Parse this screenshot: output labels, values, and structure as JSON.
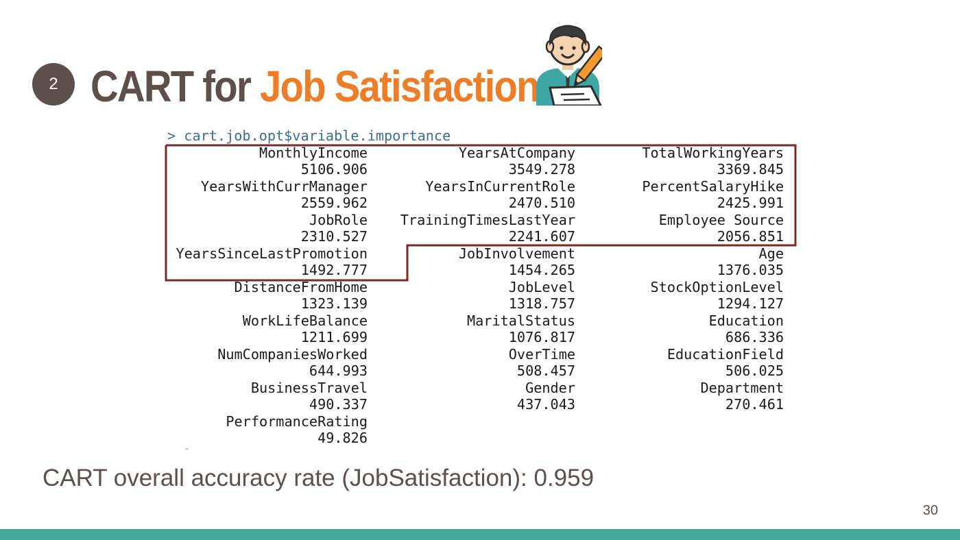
{
  "slide": {
    "badge": "2",
    "title_part1": "CART for ",
    "title_part2": "Job Satisfaction",
    "command": "> cart.job.opt$variable.importance",
    "accuracy_text": "CART overall accuracy rate (JobSatisfaction): 0.959",
    "page_number": "30"
  },
  "variable_importance": [
    {
      "name": "MonthlyIncome",
      "value": "5106.906"
    },
    {
      "name": "YearsAtCompany",
      "value": "3549.278"
    },
    {
      "name": "TotalWorkingYears",
      "value": "3369.845"
    },
    {
      "name": "YearsWithCurrManager",
      "value": "2559.962"
    },
    {
      "name": "YearsInCurrentRole",
      "value": "2470.510"
    },
    {
      "name": "PercentSalaryHike",
      "value": "2425.991"
    },
    {
      "name": "JobRole",
      "value": "2310.527"
    },
    {
      "name": "TrainingTimesLastYear",
      "value": "2241.607"
    },
    {
      "name": "Employee Source",
      "value": "2056.851"
    },
    {
      "name": "YearsSinceLastPromotion",
      "value": "1492.777"
    },
    {
      "name": "JobInvolvement",
      "value": "1454.265"
    },
    {
      "name": "Age",
      "value": "1376.035"
    },
    {
      "name": "DistanceFromHome",
      "value": "1323.139"
    },
    {
      "name": "JobLevel",
      "value": "1318.757"
    },
    {
      "name": "StockOptionLevel",
      "value": "1294.127"
    },
    {
      "name": "WorkLifeBalance",
      "value": "1211.699"
    },
    {
      "name": "MaritalStatus",
      "value": "1076.817"
    },
    {
      "name": "Education",
      "value": "686.336"
    },
    {
      "name": "NumCompaniesWorked",
      "value": "644.993"
    },
    {
      "name": "OverTime",
      "value": "508.457"
    },
    {
      "name": "EducationField",
      "value": "506.025"
    },
    {
      "name": "BusinessTravel",
      "value": "490.337"
    },
    {
      "name": "Gender",
      "value": "437.043"
    },
    {
      "name": "Department",
      "value": "270.461"
    },
    {
      "name": "PerformanceRating",
      "value": "49.826"
    }
  ],
  "colors": {
    "title_dark": "#5d4f4b",
    "title_accent": "#ee7d26",
    "highlight_box": "#7b2a2a",
    "footer_bar": "#42a99b",
    "console_prompt": "#3c6e91"
  },
  "icons": {
    "person": "person-writing-icon"
  }
}
